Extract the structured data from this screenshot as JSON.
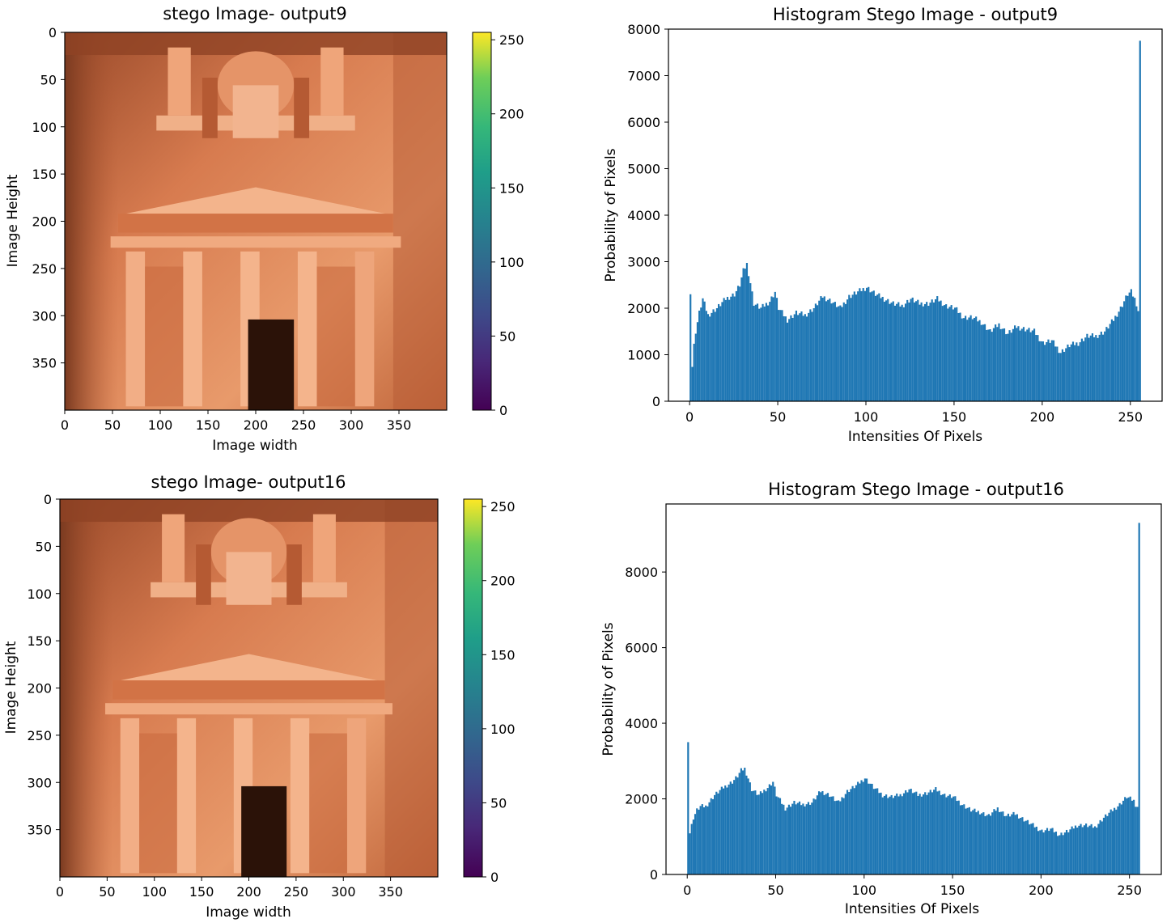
{
  "chart_data": [
    {
      "type": "image",
      "title": "stego Image- output9",
      "xlabel": "Image width",
      "ylabel": "Image Height",
      "xlim": [
        0,
        400
      ],
      "ylim": [
        400,
        0
      ],
      "xticks": [
        0,
        50,
        100,
        150,
        200,
        250,
        300,
        350
      ],
      "yticks": [
        0,
        50,
        100,
        150,
        200,
        250,
        300,
        350
      ],
      "colorbar": {
        "ticks": [
          0,
          50,
          100,
          150,
          200,
          250
        ],
        "range": [
          0,
          255
        ],
        "colormap": "viridis"
      }
    },
    {
      "type": "bar",
      "title": "Histogram Stego Image - output9",
      "xlabel": "Intensities Of Pixels",
      "ylabel": "Probability of Pixels",
      "xlim": [
        -12,
        268
      ],
      "ylim": [
        0,
        8000
      ],
      "xticks": [
        0,
        50,
        100,
        150,
        200,
        250
      ],
      "yticks": [
        0,
        1000,
        2000,
        3000,
        4000,
        5000,
        6000,
        7000,
        8000
      ],
      "color": "#1f77b4",
      "series": [
        {
          "x": [
            0,
            1,
            2,
            3,
            5,
            7,
            10,
            15,
            20,
            25,
            28,
            30,
            32,
            34,
            36,
            40,
            45,
            48,
            50,
            55,
            60,
            65,
            70,
            75,
            80,
            85,
            90,
            95,
            100,
            105,
            110,
            115,
            120,
            125,
            130,
            135,
            140,
            145,
            150,
            155,
            160,
            165,
            170,
            175,
            180,
            185,
            190,
            195,
            200,
            205,
            210,
            215,
            220,
            225,
            230,
            235,
            240,
            244,
            246,
            248,
            250,
            252,
            253,
            254,
            255
          ],
          "values": [
            2300,
            750,
            1200,
            1500,
            1900,
            2200,
            1850,
            2000,
            2200,
            2300,
            2500,
            2800,
            2950,
            2550,
            2100,
            2000,
            2150,
            2350,
            2000,
            1750,
            1900,
            1850,
            2000,
            2250,
            2150,
            2000,
            2250,
            2350,
            2450,
            2300,
            2200,
            2100,
            2050,
            2200,
            2100,
            2100,
            2200,
            2050,
            2000,
            1800,
            1800,
            1700,
            1500,
            1650,
            1450,
            1600,
            1550,
            1500,
            1250,
            1300,
            1050,
            1200,
            1250,
            1400,
            1400,
            1500,
            1750,
            2000,
            2150,
            2300,
            2350,
            2200,
            2100,
            1950,
            7750
          ]
        }
      ]
    },
    {
      "type": "image",
      "title": "stego Image- output16",
      "xlabel": "Image width",
      "ylabel": "Image Height",
      "xlim": [
        0,
        400
      ],
      "ylim": [
        400,
        0
      ],
      "xticks": [
        0,
        50,
        100,
        150,
        200,
        250,
        300,
        350
      ],
      "yticks": [
        0,
        50,
        100,
        150,
        200,
        250,
        300,
        350
      ],
      "colorbar": {
        "ticks": [
          0,
          50,
          100,
          150,
          200,
          250
        ],
        "range": [
          0,
          255
        ],
        "colormap": "viridis"
      }
    },
    {
      "type": "bar",
      "title": "Histogram Stego Image - output16",
      "xlabel": "Intensities Of Pixels",
      "ylabel": "Probability of Pixels",
      "xlim": [
        -12,
        268
      ],
      "ylim": [
        0,
        9800
      ],
      "xticks": [
        0,
        50,
        100,
        150,
        200,
        250
      ],
      "yticks": [
        0,
        2000,
        4000,
        6000,
        8000
      ],
      "color": "#1f77b4",
      "series": [
        {
          "x": [
            0,
            1,
            2,
            3,
            5,
            7,
            10,
            15,
            20,
            25,
            28,
            30,
            32,
            34,
            36,
            40,
            45,
            48,
            50,
            55,
            60,
            65,
            70,
            75,
            80,
            85,
            90,
            95,
            100,
            105,
            110,
            115,
            120,
            125,
            130,
            135,
            140,
            145,
            150,
            155,
            160,
            165,
            170,
            175,
            180,
            185,
            190,
            195,
            200,
            205,
            210,
            215,
            220,
            225,
            230,
            235,
            240,
            244,
            246,
            248,
            250,
            252,
            253,
            254,
            255
          ],
          "values": [
            3500,
            1100,
            1300,
            1500,
            1700,
            1800,
            1800,
            2100,
            2300,
            2450,
            2600,
            2750,
            2800,
            2550,
            2250,
            2100,
            2300,
            2450,
            2100,
            1750,
            1900,
            1850,
            1900,
            2200,
            2100,
            1900,
            2200,
            2350,
            2550,
            2300,
            2100,
            2050,
            2100,
            2250,
            2100,
            2150,
            2250,
            2100,
            2050,
            1850,
            1700,
            1650,
            1550,
            1750,
            1550,
            1600,
            1450,
            1300,
            1150,
            1200,
            1050,
            1150,
            1300,
            1300,
            1250,
            1500,
            1700,
            1850,
            1950,
            2050,
            2000,
            1950,
            1850,
            1800,
            9300
          ]
        }
      ]
    }
  ]
}
